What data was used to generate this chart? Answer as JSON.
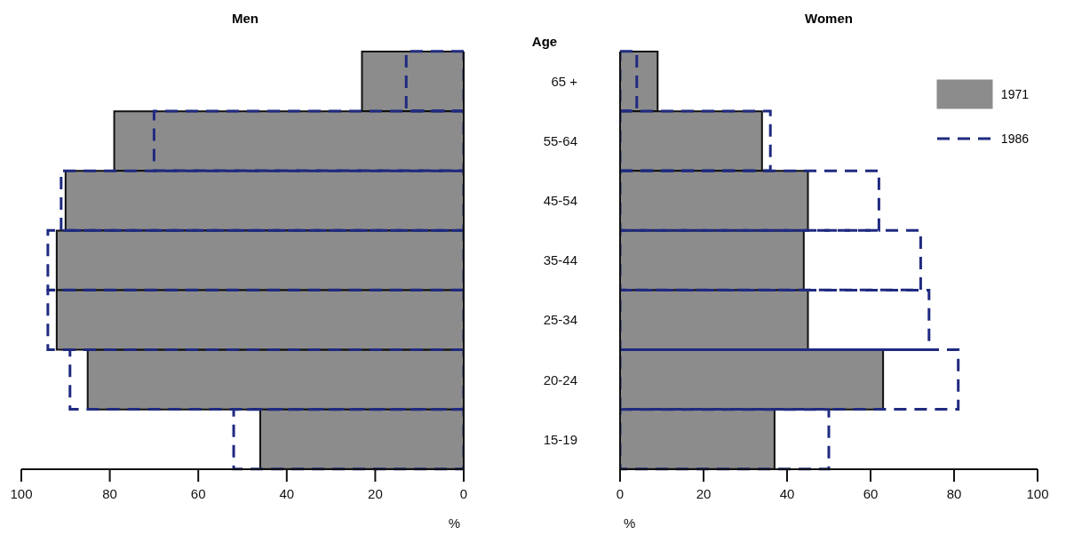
{
  "chart_data": [
    {
      "type": "bar",
      "orientation": "horizontal",
      "title": "Men",
      "xlabel": "%",
      "categories": [
        null,
        null,
        null,
        null,
        null,
        null,
        null
      ],
      "xlim": [
        100,
        0
      ],
      "xticks": [
        100,
        80,
        60,
        40,
        20,
        0
      ],
      "tick_labels": "x",
      "series": [
        {
          "color": "#8c8c8c",
          "values": [
            23,
            79,
            90,
            92,
            92,
            85,
            46
          ]
        },
        {
          "color": "#1f2a80",
          "line_style": "dashed",
          "values": [
            13,
            70,
            91,
            94,
            94,
            89,
            52
          ]
        }
      ]
    },
    {
      "type": "bar",
      "orientation": "horizontal",
      "title": "Women",
      "ylabel": "Age",
      "xlabel": "%",
      "categories": [
        "65 +",
        "55-64",
        "45-54",
        "35-44",
        "25-34",
        "20-24",
        "15-19"
      ],
      "xlim": [
        0,
        100
      ],
      "xticks": [
        0,
        20,
        40,
        60,
        80,
        100
      ],
      "legend": "top right",
      "series": [
        {
          "name": "1971",
          "color": "#8c8c8c",
          "values": [
            9,
            34,
            45,
            44,
            45,
            63,
            37
          ]
        },
        {
          "name": "1986",
          "color": "#1f2a80",
          "line_style": "dashed",
          "values": [
            4,
            36,
            62,
            72,
            74,
            81,
            50
          ]
        }
      ]
    }
  ]
}
